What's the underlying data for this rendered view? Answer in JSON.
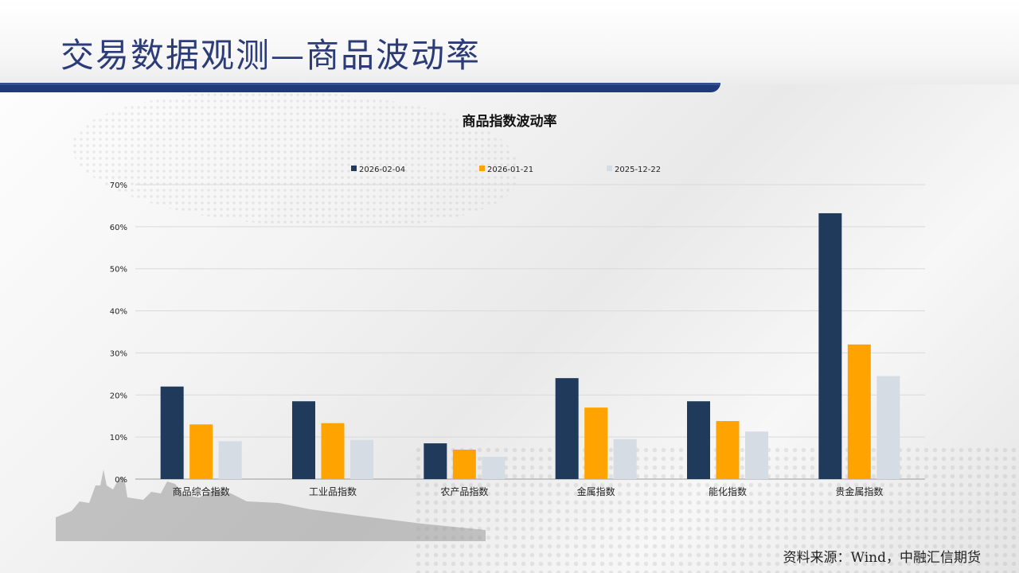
{
  "slide": {
    "title": "交易数据观测—商品波动率",
    "source": "资料来源：Wind，中融汇信期货"
  },
  "colors": {
    "title": "#2b3c78",
    "rule": "#1f3a7a"
  },
  "chart_data": {
    "type": "bar",
    "title": "商品指数波动率",
    "xlabel": "",
    "ylabel": "",
    "categories": [
      "商品综合指数",
      "工业品指数",
      "农产品指数",
      "金属指数",
      "能化指数",
      "贵金属指数"
    ],
    "series": [
      {
        "name": "2026-02-04",
        "color": "#1f3a5a",
        "values": [
          22,
          18.5,
          8.5,
          24,
          18.5,
          63.2
        ]
      },
      {
        "name": "2026-01-21",
        "color": "#ffa300",
        "values": [
          13,
          13.3,
          7,
          17,
          13.8,
          32
        ]
      },
      {
        "name": "2025-12-22",
        "color": "#d6dce4",
        "values": [
          9,
          9.3,
          5.3,
          9.5,
          11.3,
          24.5
        ]
      }
    ],
    "ylim": [
      0,
      70
    ],
    "yticks": [
      "0%",
      "10%",
      "20%",
      "30%",
      "40%",
      "50%",
      "60%",
      "70%"
    ],
    "ytick_values": [
      0,
      10,
      20,
      30,
      40,
      50,
      60,
      70
    ],
    "grid": true,
    "legend": "top"
  }
}
